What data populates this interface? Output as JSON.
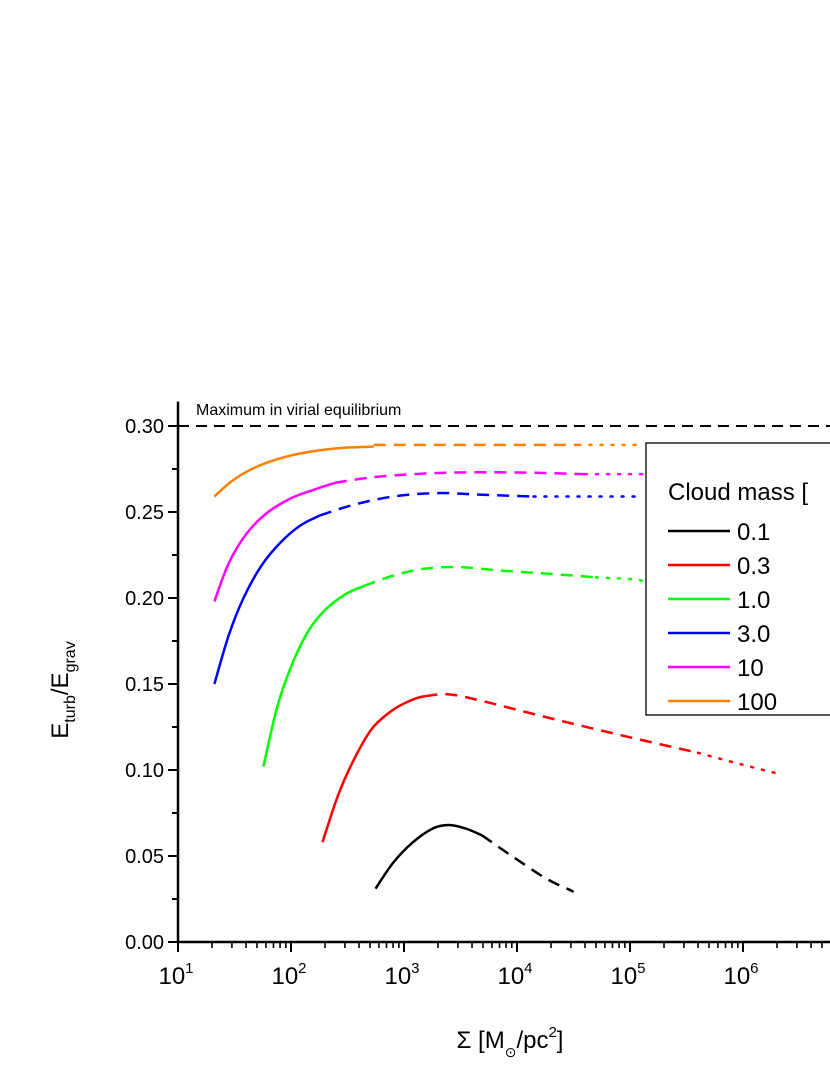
{
  "chart_data": {
    "type": "line",
    "xscale": "log",
    "xlim": [
      10,
      6000000
    ],
    "ylim": [
      0,
      0.32
    ],
    "grid": false,
    "xticks": [
      10,
      100,
      1000,
      10000,
      100000,
      1000000
    ],
    "xtick_labels": [
      "10^1",
      "10^2",
      "10^3",
      "10^4",
      "10^5",
      "10^6"
    ],
    "yticks": [
      0.0,
      0.05,
      0.1,
      0.15,
      0.2,
      0.25,
      0.3
    ],
    "ytick_labels": [
      "0.00",
      "0.05",
      "0.10",
      "0.15",
      "0.20",
      "0.25",
      "0.30"
    ],
    "xlabel": {
      "main": "Σ [M",
      "sub": "⊙",
      "mid": "/pc",
      "sup": "2",
      "end": "]"
    },
    "ylabel": {
      "main": "E",
      "sub1": "turb",
      "mid": "/E",
      "sub2": "grav"
    },
    "reference_line": {
      "y": 0.3,
      "style": "dashed",
      "color": "#000000",
      "label": "Maximum in virial equilibrium"
    },
    "legend": {
      "title": "Cloud mass [",
      "placement": "right"
    },
    "series": [
      {
        "name": "0.1",
        "color": "#000000",
        "segments": [
          {
            "style": "solid",
            "x": [
              560,
              800,
              1200,
              1800,
              2500,
              3500,
              4900
            ],
            "y": [
              0.031,
              0.046,
              0.058,
              0.066,
              0.068,
              0.066,
              0.062
            ]
          },
          {
            "style": "dashed",
            "x": [
              4900,
              9000,
              18000,
              30000
            ],
            "y": [
              0.062,
              0.05,
              0.037,
              0.03
            ]
          },
          {
            "style": "dotted",
            "x": [
              30000,
              36000
            ],
            "y": [
              0.03,
              0.027
            ]
          }
        ]
      },
      {
        "name": "0.3",
        "color": "#ff0000",
        "segments": [
          {
            "style": "solid",
            "x": [
              190,
              260,
              360,
              520,
              800,
              1200,
              1550
            ],
            "y": [
              0.058,
              0.085,
              0.106,
              0.124,
              0.135,
              0.141,
              0.143
            ]
          },
          {
            "style": "dashed",
            "x": [
              1550,
              2500,
              5000,
              20000,
              100000,
              400000
            ],
            "y": [
              0.143,
              0.144,
              0.14,
              0.13,
              0.119,
              0.11
            ]
          },
          {
            "style": "dotted",
            "x": [
              400000,
              1000000,
              2000000
            ],
            "y": [
              0.11,
              0.103,
              0.098
            ]
          }
        ]
      },
      {
        "name": "1.0",
        "color": "#00ff00",
        "segments": [
          {
            "style": "solid",
            "x": [
              57,
              75,
              100,
              140,
              200,
              300,
              440
            ],
            "y": [
              0.102,
              0.136,
              0.16,
              0.18,
              0.193,
              0.202,
              0.207
            ]
          },
          {
            "style": "dashed",
            "x": [
              440,
              800,
              1500,
              3000,
              7000,
              20000,
              50000
            ],
            "y": [
              0.207,
              0.213,
              0.217,
              0.218,
              0.216,
              0.214,
              0.212
            ]
          },
          {
            "style": "dotted",
            "x": [
              50000,
              100000,
              130000
            ],
            "y": [
              0.212,
              0.211,
              0.21
            ]
          }
        ]
      },
      {
        "name": "3.0",
        "color": "#0000ff",
        "segments": [
          {
            "style": "solid",
            "x": [
              21,
              28,
              38,
              55,
              80,
              120,
              180
            ],
            "y": [
              0.15,
              0.178,
              0.2,
              0.219,
              0.232,
              0.242,
              0.248
            ]
          },
          {
            "style": "dashed",
            "x": [
              180,
              350,
              800,
              2000,
              5000,
              14000
            ],
            "y": [
              0.248,
              0.254,
              0.259,
              0.261,
              0.26,
              0.259
            ]
          },
          {
            "style": "dotted",
            "x": [
              14000,
              50000,
              130000
            ],
            "y": [
              0.259,
              0.259,
              0.259
            ]
          }
        ]
      },
      {
        "name": "10",
        "color": "#ff00ff",
        "segments": [
          {
            "style": "solid",
            "x": [
              21,
              28,
              40,
              60,
              100,
              160,
              245
            ],
            "y": [
              0.198,
              0.22,
              0.237,
              0.249,
              0.258,
              0.263,
              0.267
            ]
          },
          {
            "style": "dashed",
            "x": [
              245,
              500,
              1200,
              3000,
              10000,
              40000
            ],
            "y": [
              0.267,
              0.27,
              0.272,
              0.273,
              0.273,
              0.272
            ]
          },
          {
            "style": "dotted",
            "x": [
              40000,
              90000,
              130000
            ],
            "y": [
              0.272,
              0.272,
              0.272
            ]
          }
        ]
      },
      {
        "name": "100",
        "color": "#ff8000",
        "segments": [
          {
            "style": "solid",
            "x": [
              21,
              30,
              45,
              70,
              120,
              250,
              540
            ],
            "y": [
              0.259,
              0.268,
              0.275,
              0.28,
              0.284,
              0.287,
              0.288
            ]
          },
          {
            "style": "dashed",
            "x": [
              540,
              1500,
              5000,
              20000,
              35000
            ],
            "y": [
              0.289,
              0.289,
              0.289,
              0.289,
              0.289
            ]
          },
          {
            "style": "dotted",
            "x": [
              35000,
              80000,
              130000
            ],
            "y": [
              0.289,
              0.289,
              0.289
            ]
          }
        ]
      }
    ]
  }
}
